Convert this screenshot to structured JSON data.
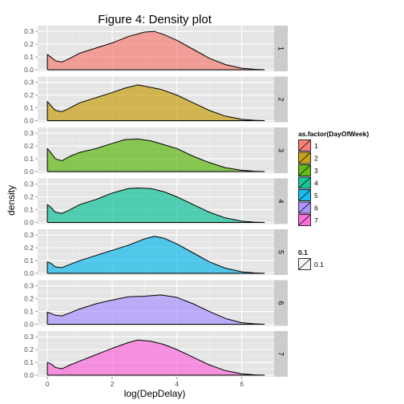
{
  "chart_data": {
    "type": "area",
    "title": "Figure 4: Density plot",
    "xlabel": "log(DepDelay)",
    "ylabel": "density",
    "xlim": [
      -0.3,
      7.0
    ],
    "ylim": [
      0,
      0.32
    ],
    "x_ticks": [
      0,
      2,
      4,
      6
    ],
    "x_tick_labels": [
      "0",
      "2",
      "4",
      "6"
    ],
    "y_ticks": [
      0,
      0.1,
      0.2,
      0.3
    ],
    "y_tick_labels": [
      "0.0",
      "0.1",
      "0.2",
      "0.3"
    ],
    "facet_variable": "DayOfWeek",
    "grid": true,
    "legend_position": "right",
    "legend": {
      "fill_title": "as.factor(DayOfWeek)",
      "alpha_title": "0.1",
      "alpha_label": "0.1"
    },
    "series": [
      {
        "name": "1",
        "color": "#F8766D",
        "x": [
          0.0,
          0.1,
          0.25,
          0.45,
          0.7,
          1.0,
          1.5,
          2.0,
          2.5,
          3.0,
          3.3,
          3.6,
          4.0,
          4.5,
          5.0,
          5.5,
          6.0,
          6.4,
          6.7
        ],
        "y": [
          0.12,
          0.1,
          0.07,
          0.06,
          0.09,
          0.13,
          0.17,
          0.21,
          0.26,
          0.295,
          0.3,
          0.275,
          0.23,
          0.16,
          0.09,
          0.04,
          0.012,
          0.003,
          0.0
        ]
      },
      {
        "name": "2",
        "color": "#C49A00",
        "x": [
          0.0,
          0.1,
          0.25,
          0.45,
          0.7,
          1.0,
          1.5,
          2.0,
          2.4,
          2.8,
          3.1,
          3.5,
          4.0,
          4.5,
          5.0,
          5.5,
          6.0,
          6.4,
          6.7
        ],
        "y": [
          0.15,
          0.12,
          0.08,
          0.07,
          0.1,
          0.14,
          0.18,
          0.22,
          0.255,
          0.28,
          0.265,
          0.245,
          0.2,
          0.14,
          0.08,
          0.035,
          0.01,
          0.002,
          0.0
        ]
      },
      {
        "name": "3",
        "color": "#53B400",
        "x": [
          0.0,
          0.1,
          0.25,
          0.45,
          0.7,
          1.0,
          1.5,
          2.0,
          2.4,
          2.8,
          3.2,
          3.6,
          4.0,
          4.5,
          5.0,
          5.5,
          6.0,
          6.4,
          6.7
        ],
        "y": [
          0.18,
          0.15,
          0.1,
          0.085,
          0.12,
          0.15,
          0.18,
          0.22,
          0.25,
          0.255,
          0.24,
          0.21,
          0.18,
          0.12,
          0.07,
          0.03,
          0.01,
          0.002,
          0.0
        ]
      },
      {
        "name": "4",
        "color": "#00C094",
        "x": [
          0.0,
          0.1,
          0.25,
          0.45,
          0.7,
          1.0,
          1.5,
          2.0,
          2.5,
          2.8,
          3.2,
          3.6,
          4.0,
          4.5,
          5.0,
          5.5,
          6.0,
          6.4,
          6.7
        ],
        "y": [
          0.14,
          0.12,
          0.08,
          0.07,
          0.1,
          0.14,
          0.18,
          0.23,
          0.265,
          0.27,
          0.265,
          0.24,
          0.2,
          0.14,
          0.08,
          0.035,
          0.01,
          0.002,
          0.0
        ]
      },
      {
        "name": "5",
        "color": "#00B6EB",
        "x": [
          0.0,
          0.1,
          0.25,
          0.45,
          0.7,
          1.0,
          1.5,
          2.0,
          2.5,
          3.0,
          3.3,
          3.6,
          4.0,
          4.5,
          5.0,
          5.5,
          6.0,
          6.4,
          6.7
        ],
        "y": [
          0.09,
          0.08,
          0.05,
          0.045,
          0.07,
          0.1,
          0.14,
          0.18,
          0.22,
          0.27,
          0.29,
          0.275,
          0.23,
          0.16,
          0.09,
          0.04,
          0.012,
          0.003,
          0.0
        ]
      },
      {
        "name": "6",
        "color": "#A58AFF",
        "x": [
          0.0,
          0.1,
          0.25,
          0.45,
          0.7,
          1.0,
          1.5,
          2.0,
          2.5,
          3.0,
          3.5,
          4.0,
          4.5,
          5.0,
          5.5,
          6.0,
          6.4,
          6.7
        ],
        "y": [
          0.095,
          0.085,
          0.07,
          0.065,
          0.09,
          0.12,
          0.16,
          0.19,
          0.215,
          0.22,
          0.23,
          0.21,
          0.16,
          0.1,
          0.045,
          0.012,
          0.003,
          0.0
        ]
      },
      {
        "name": "7",
        "color": "#FB61D7",
        "x": [
          0.0,
          0.1,
          0.25,
          0.45,
          0.7,
          1.0,
          1.5,
          2.0,
          2.5,
          2.8,
          3.2,
          3.6,
          4.0,
          4.5,
          5.0,
          5.5,
          6.0,
          6.4,
          6.7
        ],
        "y": [
          0.1,
          0.09,
          0.06,
          0.05,
          0.08,
          0.11,
          0.16,
          0.21,
          0.255,
          0.275,
          0.265,
          0.24,
          0.2,
          0.14,
          0.08,
          0.035,
          0.01,
          0.002,
          0.0
        ]
      }
    ]
  }
}
